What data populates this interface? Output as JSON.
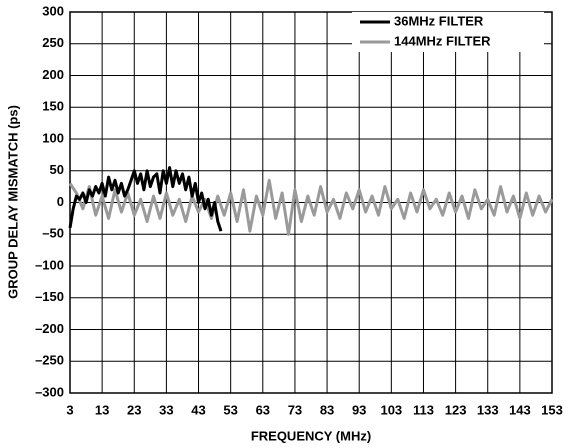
{
  "chart_data": {
    "type": "line",
    "xlabel": "FREQUENCY (MHz)",
    "ylabel": "GROUP DELAY MISMATCH (ps)",
    "xlim": [
      3,
      153
    ],
    "xticks": [
      3,
      13,
      23,
      33,
      43,
      53,
      63,
      73,
      83,
      93,
      103,
      113,
      123,
      133,
      143,
      153
    ],
    "ylim": [
      -300,
      300
    ],
    "yticks": [
      {
        "value": -300,
        "label": "–300"
      },
      {
        "value": -250,
        "label": "–250"
      },
      {
        "value": -200,
        "label": "–200"
      },
      {
        "value": -150,
        "label": "–150"
      },
      {
        "value": -100,
        "label": "–100"
      },
      {
        "value": -50,
        "label": "–50"
      },
      0,
      50,
      100,
      150,
      200,
      250,
      300
    ],
    "grid": true,
    "legend": "upper right",
    "series": [
      {
        "name": "36MHz FILTER",
        "color": "#000000",
        "x": [
          3,
          4,
          5,
          6,
          7,
          8,
          9,
          10,
          11,
          12,
          13,
          14,
          15,
          16,
          17,
          18,
          19,
          20,
          21,
          22,
          23,
          24,
          25,
          26,
          27,
          28,
          29,
          30,
          31,
          32,
          33,
          34,
          35,
          36,
          37,
          38,
          39,
          40,
          41,
          42,
          43,
          44,
          45,
          46,
          47,
          48,
          49,
          50
        ],
        "values": [
          -40,
          -10,
          10,
          5,
          15,
          0,
          20,
          10,
          25,
          15,
          30,
          10,
          40,
          20,
          35,
          15,
          30,
          10,
          20,
          35,
          50,
          30,
          45,
          20,
          50,
          25,
          40,
          45,
          15,
          50,
          30,
          55,
          25,
          50,
          30,
          45,
          20,
          40,
          10,
          30,
          0,
          15,
          -10,
          5,
          -20,
          0,
          -30,
          -45
        ]
      },
      {
        "name": "144MHz FILTER",
        "color": "#9a9a9a",
        "x": [
          3,
          5,
          7,
          9,
          11,
          13,
          15,
          17,
          19,
          21,
          23,
          25,
          27,
          29,
          31,
          33,
          35,
          37,
          39,
          41,
          43,
          45,
          47,
          49,
          51,
          53,
          55,
          57,
          59,
          61,
          63,
          65,
          67,
          69,
          71,
          73,
          75,
          77,
          79,
          81,
          83,
          85,
          87,
          89,
          91,
          93,
          95,
          97,
          99,
          101,
          103,
          105,
          107,
          109,
          111,
          113,
          115,
          117,
          119,
          121,
          123,
          125,
          127,
          129,
          131,
          133,
          135,
          137,
          139,
          141,
          143,
          145,
          147,
          149,
          151,
          153
        ],
        "values": [
          30,
          15,
          -10,
          25,
          -20,
          10,
          -25,
          20,
          -15,
          15,
          -20,
          5,
          -30,
          10,
          -25,
          15,
          -20,
          5,
          -30,
          10,
          -15,
          5,
          -25,
          10,
          -20,
          15,
          -30,
          20,
          -45,
          10,
          -20,
          35,
          -25,
          15,
          -50,
          20,
          -30,
          10,
          -20,
          25,
          -15,
          5,
          -25,
          15,
          -10,
          20,
          -15,
          10,
          -20,
          25,
          -10,
          5,
          -25,
          15,
          -15,
          20,
          -10,
          5,
          -20,
          15,
          -15,
          10,
          -25,
          20,
          -10,
          5,
          -20,
          25,
          -15,
          10,
          -25,
          15,
          -20,
          10,
          -15,
          5
        ]
      }
    ]
  }
}
